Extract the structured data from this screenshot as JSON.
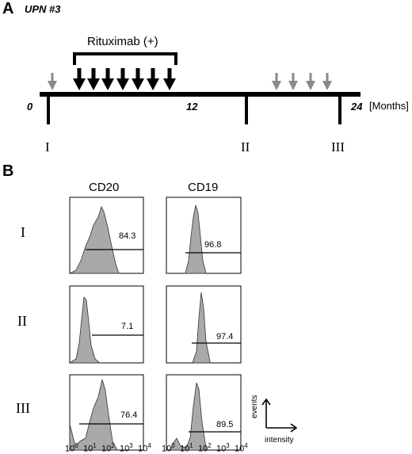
{
  "panel_a": {
    "letter": "A",
    "patient": "UPN #3",
    "treatment_label": "Rituximab (+)",
    "tick_start": "0",
    "tick_mid": "12",
    "tick_end": "24",
    "unit": "[Months]",
    "timepoints": [
      "I",
      "II",
      "III"
    ]
  },
  "panel_b": {
    "letter": "B",
    "columns": [
      "CD20",
      "CD19"
    ],
    "rows": [
      "I",
      "II",
      "III"
    ],
    "values": {
      "cd20": [
        "84.3",
        "7.1",
        "76.4"
      ],
      "cd19": [
        "96.8",
        "97.4",
        "89.5"
      ]
    },
    "x_ticks": [
      "10",
      "1",
      "2",
      "3",
      "4"
    ],
    "legend": {
      "y": "events",
      "x": "intensity"
    },
    "fill_color": "#a9a9a9"
  }
}
